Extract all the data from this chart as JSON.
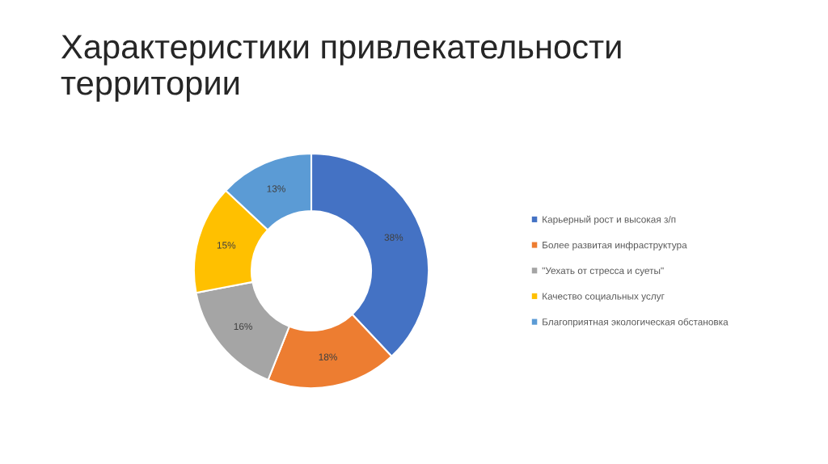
{
  "chart_data": {
    "type": "donut",
    "title": "Характеристики привлекательности\nтерритории",
    "categories": [
      "Карьерный рост и высокая з/п",
      "Более развитая инфраструктура",
      "\"Уехать от стресса и суеты\"",
      "Качество социальных услуг",
      "Благоприятная экологическая обстановка"
    ],
    "values": [
      38,
      18,
      16,
      15,
      13
    ],
    "colors": [
      "#4472c4",
      "#ed7d31",
      "#a5a5a5",
      "#ffc000",
      "#5b9bd5"
    ],
    "value_labels": [
      "38%",
      "18%",
      "16%",
      "15%",
      "13%"
    ],
    "legend": "right"
  }
}
